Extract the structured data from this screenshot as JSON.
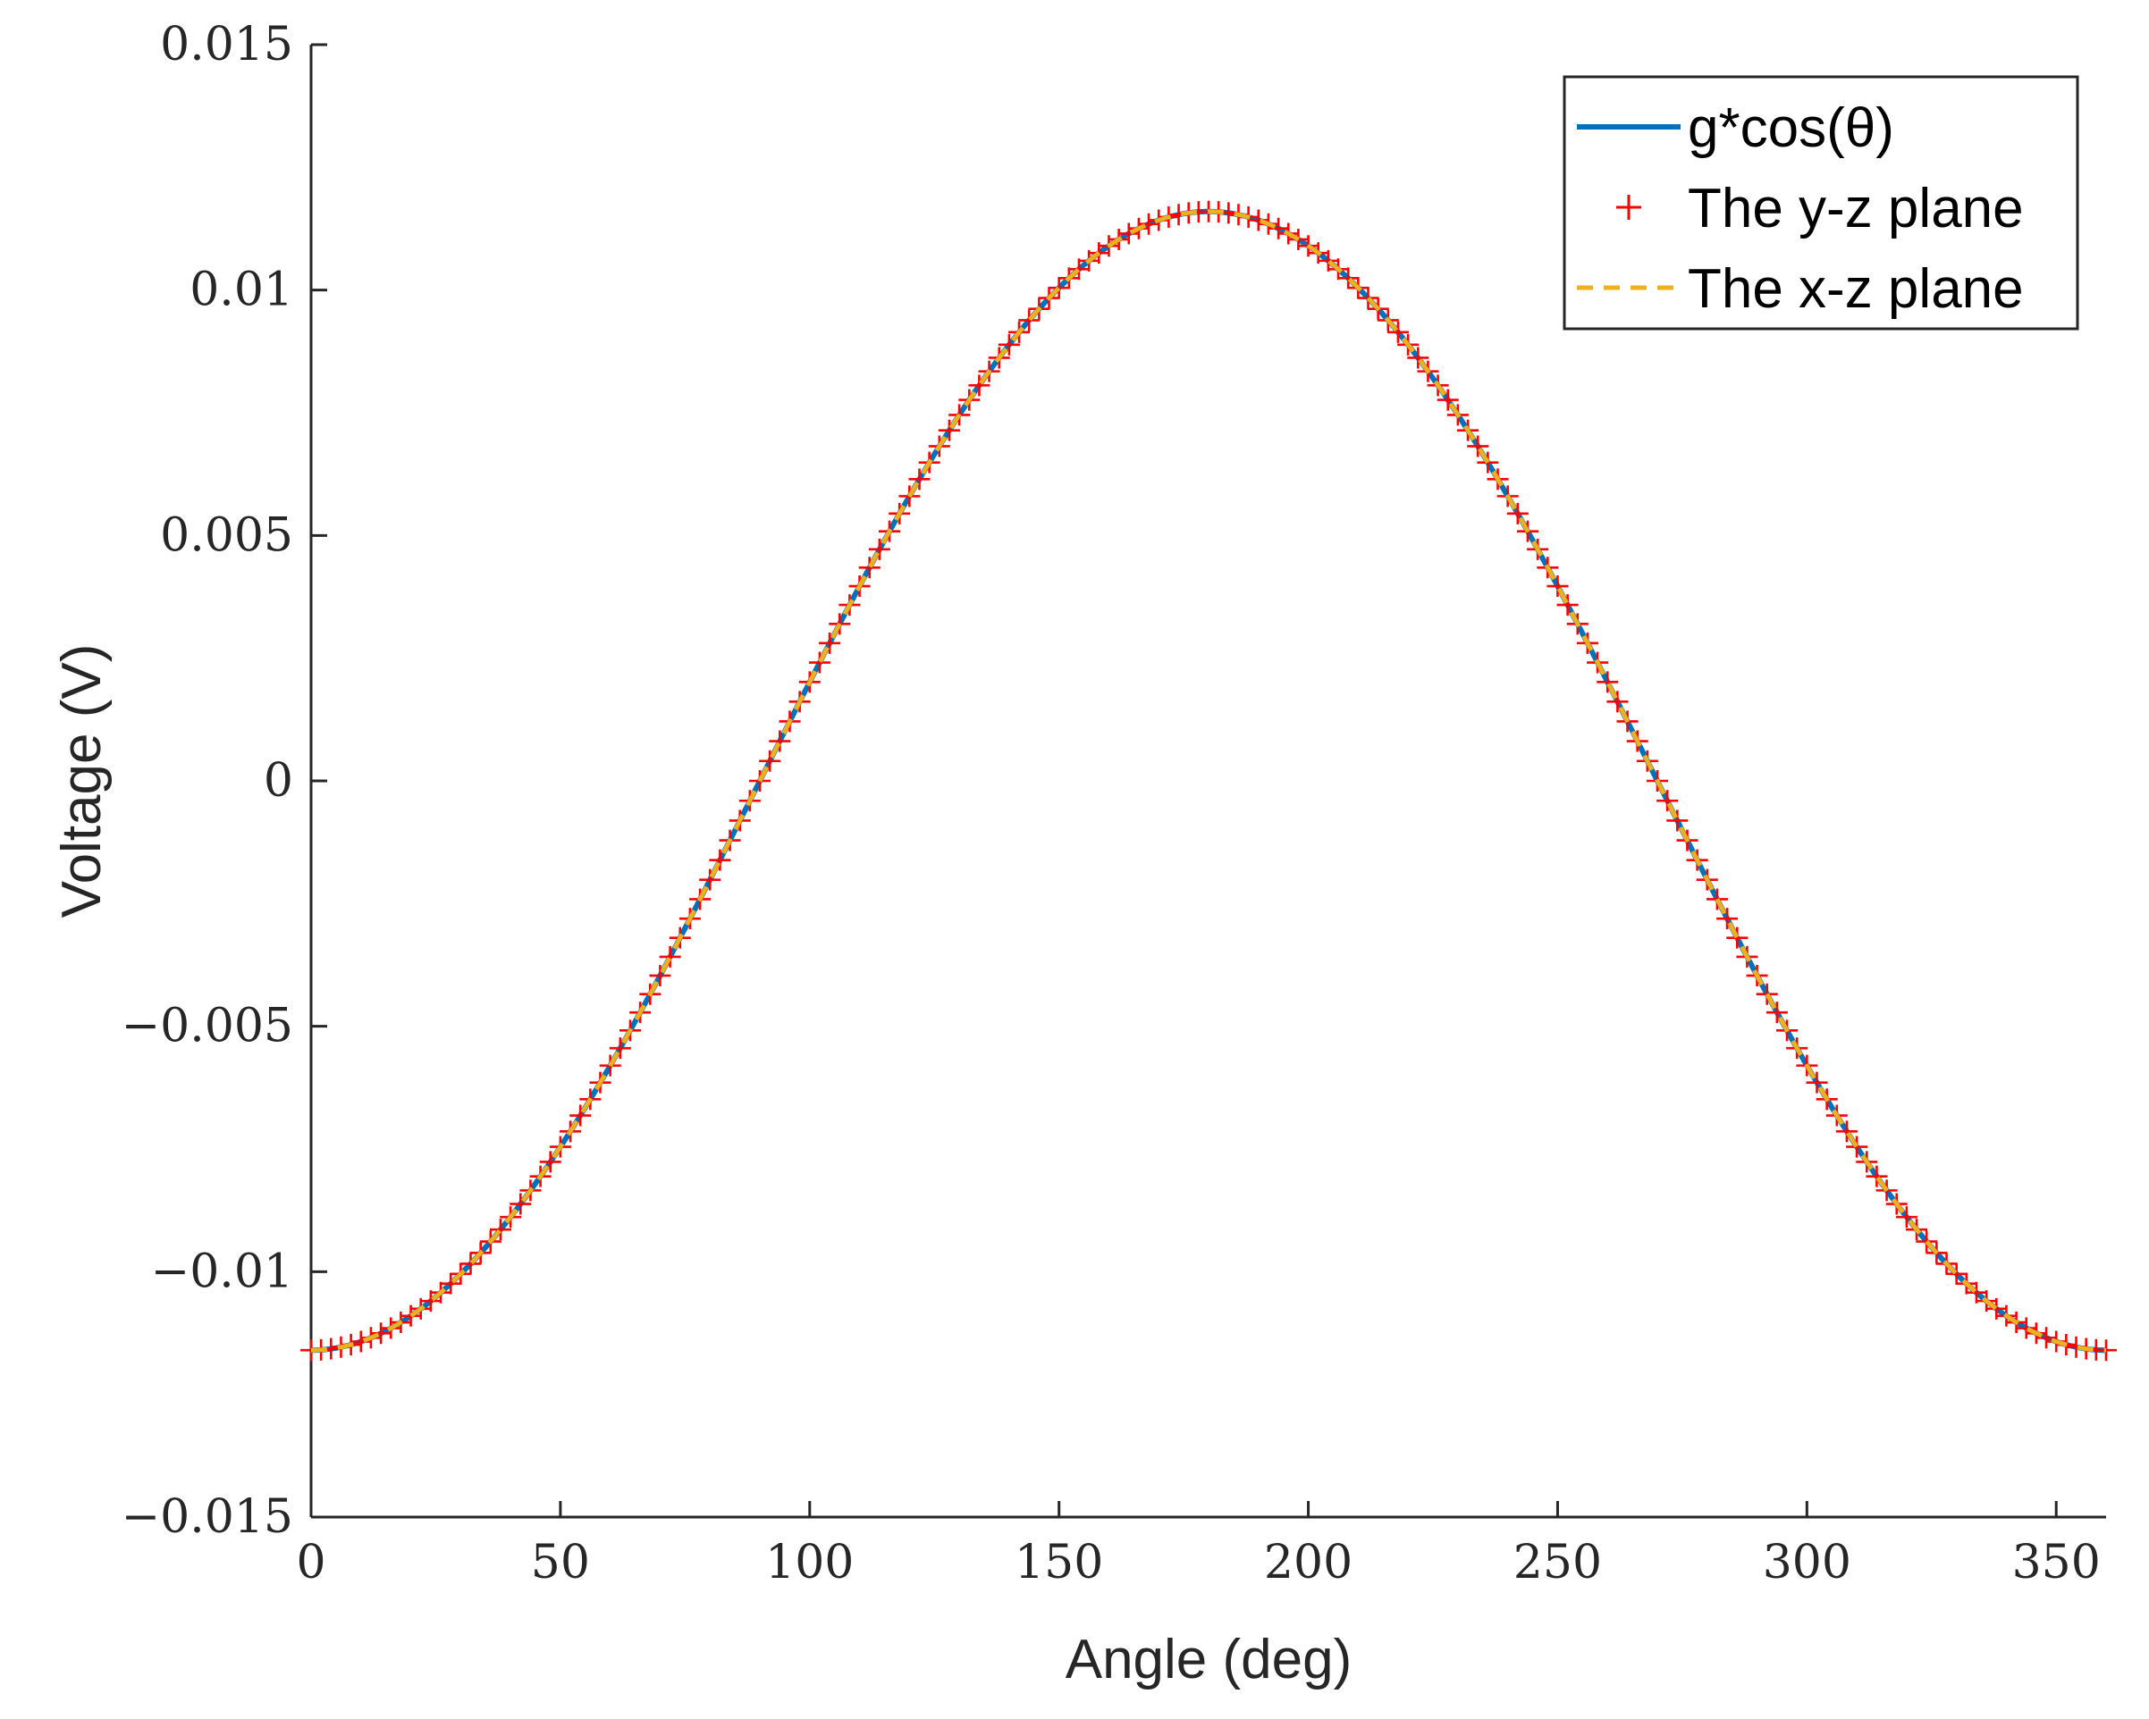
{
  "chart_data": {
    "type": "line",
    "title": "",
    "xlabel": "Angle (deg)",
    "ylabel": "Voltage (V)",
    "xlim": [
      0,
      360
    ],
    "ylim": [
      -0.015,
      0.015
    ],
    "xticks": [
      0,
      50,
      100,
      150,
      200,
      250,
      300,
      350
    ],
    "xtick_labels": [
      "0",
      "50",
      "100",
      "150",
      "200",
      "250",
      "300",
      "350"
    ],
    "yticks": [
      0.015,
      0.01,
      0.005,
      0,
      -0.005,
      -0.01,
      -0.015
    ],
    "ytick_labels": [
      "0.015",
      "0.01",
      "0.005",
      "0",
      "−0.005",
      "−0.01",
      "−0.015"
    ],
    "grid": false,
    "legend_position": "top-right",
    "model": {
      "function": "-g*cos(theta)",
      "amplitude_g": 0.0116,
      "x_start": 0,
      "x_end": 360,
      "x_step": 2
    },
    "series": [
      {
        "name": "g*cos(θ)",
        "style": "solid",
        "color": "#0072BD"
      },
      {
        "name": "The y-z plane",
        "style": "plus-markers",
        "color": "#FF0000"
      },
      {
        "name": "The x-z plane",
        "style": "dashed",
        "color": "#EDB120"
      }
    ]
  }
}
